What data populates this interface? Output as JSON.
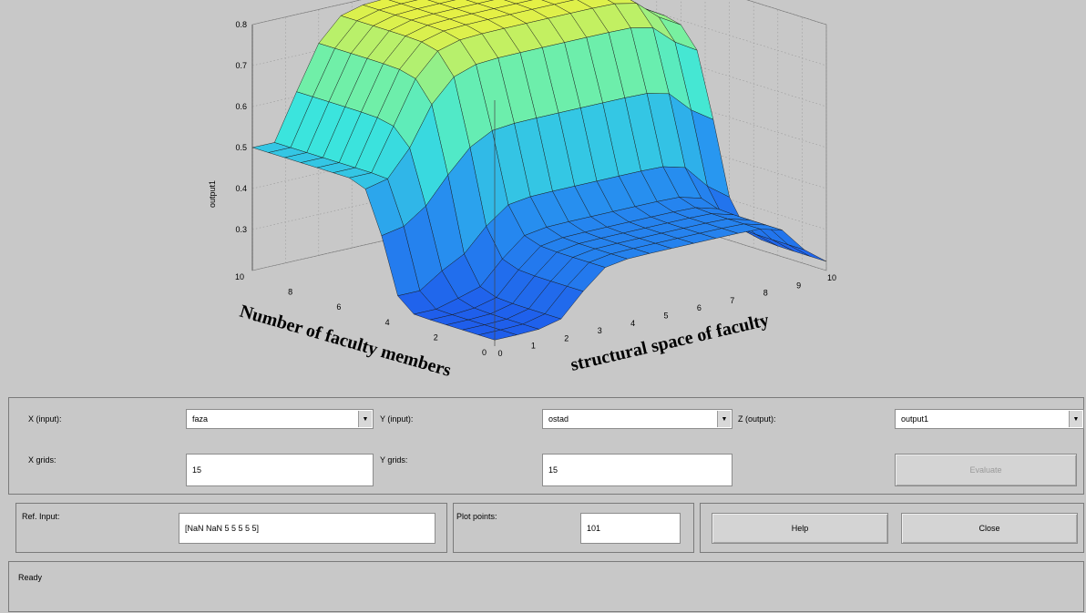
{
  "surface": {
    "title_x": "structural space of faculty",
    "title_y": "Number of faculty members",
    "title_z": "output1",
    "x_ticks": [
      "0",
      "1",
      "2",
      "3",
      "4",
      "5",
      "6",
      "7",
      "8",
      "9",
      "10"
    ],
    "y_ticks": [
      "0",
      "2",
      "4",
      "6",
      "8",
      "10"
    ],
    "z_ticks": [
      "0.3",
      "0.4",
      "0.5",
      "0.6",
      "0.7",
      "0.8"
    ]
  },
  "chart_data": {
    "type": "surface",
    "xlabel": "structural space of faculty",
    "ylabel": "Number of faculty members",
    "zlabel": "output1",
    "xlim": [
      0,
      10
    ],
    "ylim": [
      0,
      10
    ],
    "zlim": [
      0.2,
      0.8
    ],
    "grid": true
  },
  "controls": {
    "x_input_label": "X (input):",
    "x_input_value": "faza",
    "y_input_label": "Y (input):",
    "y_input_value": "ostad",
    "z_output_label": "Z (output):",
    "z_output_value": "output1",
    "x_grids_label": "X grids:",
    "x_grids_value": "15",
    "y_grids_label": "Y grids:",
    "y_grids_value": "15",
    "evaluate_label": "Evaluate",
    "ref_input_label": "Ref. Input:",
    "ref_input_value": "[NaN NaN 5 5 5 5 5]",
    "plot_points_label": "Plot points:",
    "plot_points_value": "101",
    "help_label": "Help",
    "close_label": "Close"
  },
  "status": {
    "text": "Ready"
  },
  "colors": {
    "accent_low": "#2a5cf0",
    "accent_mid": "#3fe0d0",
    "accent_high": "#f0f040"
  }
}
